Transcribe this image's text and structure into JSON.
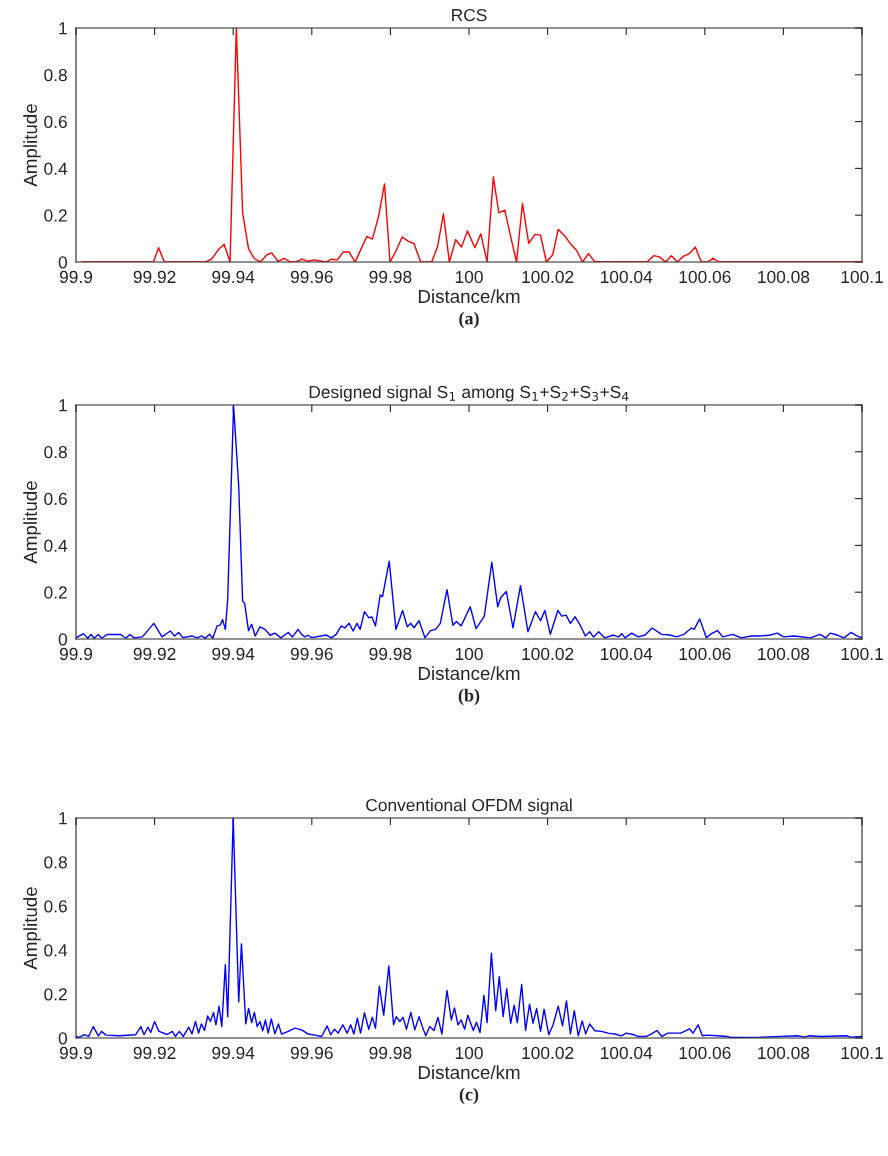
{
  "chart_data": [
    {
      "type": "line",
      "title": "RCS",
      "xlabel": "Distance/km",
      "ylabel": "Amplitude",
      "annotations": [
        "(a)"
      ],
      "xlim": [
        99.9,
        100.1
      ],
      "xticks": [
        99.9,
        99.92,
        99.94,
        99.96,
        99.98,
        100,
        100.02,
        100.04,
        100.06,
        100.08,
        100.1
      ],
      "ylim": [
        0,
        1
      ],
      "yticks": [
        0,
        0.2,
        0.4,
        0.6,
        0.8,
        1
      ],
      "series": [
        {
          "color": "#ff0000",
          "x": [
            99.9015,
            99.9197,
            99.921,
            99.9225,
            99.933,
            99.9345,
            99.9363,
            99.9377,
            99.9392,
            99.9408,
            99.9424,
            99.9439,
            99.9453,
            99.9469,
            99.9486,
            99.9498,
            99.9514,
            99.953,
            99.9545,
            99.956,
            99.9575,
            99.959,
            99.9606,
            99.9636,
            99.965,
            99.9665,
            99.968,
            99.9695,
            99.971,
            99.9725,
            99.974,
            99.9754,
            99.977,
            99.9785,
            99.9799,
            99.9814,
            99.983,
            99.9846,
            99.986,
            99.9877,
            99.9905,
            99.992,
            99.9935,
            99.995,
            99.9966,
            99.9981,
            99.9996,
            100.0015,
            100.003,
            100.0046,
            100.0062,
            100.0076,
            100.0091,
            100.0107,
            100.0121,
            100.0136,
            100.0152,
            100.0168,
            100.0182,
            100.0197,
            100.0213,
            100.0227,
            100.0243,
            100.0259,
            100.0274,
            100.0289,
            100.0304,
            100.0319,
            100.0334,
            100.0453,
            100.047,
            100.0485,
            100.05,
            100.0515,
            100.053,
            100.0545,
            100.0561,
            100.0576,
            100.0591,
            100.0607,
            100.0621,
            100.0636,
            100.1
          ],
          "values": [
            0,
            0,
            0.061,
            0,
            0,
            0.012,
            0.054,
            0.076,
            0,
            1.0,
            0.21,
            0.057,
            0.016,
            0,
            0.031,
            0.039,
            0.003,
            0.016,
            0,
            0,
            0.012,
            0.003,
            0.009,
            0,
            0.012,
            0.009,
            0.043,
            0.043,
            0,
            0.054,
            0.109,
            0.098,
            0.195,
            0.334,
            0,
            0.046,
            0.107,
            0.088,
            0.079,
            0,
            0,
            0.066,
            0.206,
            0,
            0.095,
            0.064,
            0.133,
            0.061,
            0.121,
            0,
            0.364,
            0.21,
            0.222,
            0.101,
            0,
            0.25,
            0.08,
            0.118,
            0.115,
            0,
            0.031,
            0.139,
            0.113,
            0.076,
            0.049,
            0,
            0.036,
            0.003,
            0,
            0,
            0.027,
            0.022,
            0,
            0.027,
            0,
            0.024,
            0.036,
            0.064,
            0,
            0,
            0.016,
            0,
            0
          ]
        }
      ]
    },
    {
      "type": "line",
      "title": "Designed signal S$_{1}$ among S$_{1}$+S$_{2}$+S$_{3}$+S$_{4}$",
      "xlabel": "Distance/km",
      "ylabel": "Amplitude",
      "annotations": [
        "(b)"
      ],
      "xlim": [
        99.9,
        100.1
      ],
      "xticks": [
        99.9,
        99.92,
        99.94,
        99.96,
        99.98,
        100,
        100.02,
        100.04,
        100.06,
        100.08,
        100.1
      ],
      "ylim": [
        0,
        1
      ],
      "yticks": [
        0,
        0.2,
        0.4,
        0.6,
        0.8,
        1
      ],
      "series": [
        {
          "color": "#0000ff",
          "x": [
            99.9,
            99.9019,
            99.903,
            99.9038,
            99.9046,
            99.9057,
            99.9065,
            99.908,
            99.9114,
            99.9127,
            99.9137,
            99.9148,
            99.9169,
            99.9198,
            99.9219,
            99.924,
            99.9251,
            99.9261,
            99.9272,
            99.9295,
            99.9308,
            99.932,
            99.9329,
            99.934,
            99.9348,
            99.9359,
            99.9367,
            99.9373,
            99.938,
            99.9386,
            99.9401,
            99.9414,
            99.9424,
            99.9429,
            99.9439,
            99.9447,
            99.9456,
            99.9468,
            99.9481,
            99.9494,
            99.9506,
            99.9521,
            99.954,
            99.9551,
            99.9565,
            99.9574,
            99.9582,
            99.959,
            99.96,
            99.9637,
            99.965,
            99.9662,
            99.9675,
            99.9684,
            99.9695,
            99.9705,
            99.9715,
            99.9723,
            99.9734,
            99.9745,
            99.9753,
            99.9762,
            99.9774,
            99.978,
            99.9797,
            99.9814,
            99.9831,
            99.9843,
            99.9852,
            99.986,
            99.9873,
            99.9888,
            99.9902,
            99.9915,
            99.9927,
            99.9944,
            99.9959,
            99.9968,
            99.998,
            100.0003,
            100.0018,
            100.0039,
            100.0058,
            100.0073,
            100.0081,
            100.0095,
            100.0112,
            100.0131,
            100.015,
            100.0169,
            100.0182,
            100.0193,
            100.0207,
            100.0226,
            100.0236,
            100.0247,
            100.0258,
            100.027,
            100.0283,
            100.0296,
            100.0307,
            100.0317,
            100.033,
            100.0345,
            100.0368,
            100.038,
            100.0389,
            100.0397,
            100.0414,
            100.0431,
            100.0448,
            100.0466,
            100.049,
            100.0511,
            100.0528,
            100.0547,
            100.0566,
            100.0573,
            100.0587,
            100.0604,
            100.0617,
            100.0632,
            100.0646,
            100.0671,
            100.0693,
            100.0718,
            100.0739,
            100.0764,
            100.0785,
            100.08,
            100.0827,
            100.0869,
            100.0893,
            100.0908,
            100.0919,
            100.0937,
            100.0954,
            100.0972,
            100.0987,
            100.1
          ],
          "values": [
            0.005,
            0.023,
            0.003,
            0.019,
            0.003,
            0.019,
            0.003,
            0.02,
            0.019,
            0.003,
            0.019,
            0.005,
            0.009,
            0.067,
            0.009,
            0.034,
            0.013,
            0.028,
            0.006,
            0.013,
            0.005,
            0.013,
            0.003,
            0.02,
            0.003,
            0.056,
            0.059,
            0.083,
            0.041,
            0.169,
            0.997,
            0.653,
            0.161,
            0.153,
            0.036,
            0.063,
            0.013,
            0.052,
            0.041,
            0.016,
            0.025,
            0.005,
            0.028,
            0.009,
            0.041,
            0.02,
            0.009,
            0.016,
            0.006,
            0.017,
            0.005,
            0.02,
            0.056,
            0.047,
            0.067,
            0.034,
            0.067,
            0.041,
            0.117,
            0.091,
            0.094,
            0.056,
            0.188,
            0.181,
            0.333,
            0.041,
            0.122,
            0.052,
            0.067,
            0.048,
            0.078,
            0.005,
            0.036,
            0.041,
            0.067,
            0.211,
            0.059,
            0.075,
            0.056,
            0.138,
            0.044,
            0.098,
            0.328,
            0.138,
            0.177,
            0.203,
            0.048,
            0.228,
            0.031,
            0.117,
            0.078,
            0.122,
            0.02,
            0.122,
            0.098,
            0.102,
            0.067,
            0.095,
            0.059,
            0.013,
            0.031,
            0.008,
            0.031,
            0.005,
            0.017,
            0.009,
            0.023,
            0.005,
            0.025,
            0.009,
            0.017,
            0.047,
            0.02,
            0.017,
            0.009,
            0.02,
            0.047,
            0.041,
            0.086,
            0.005,
            0.023,
            0.036,
            0.009,
            0.02,
            0.005,
            0.013,
            0.013,
            0.016,
            0.025,
            0.009,
            0.013,
            0.005,
            0.02,
            0.005,
            0.025,
            0.017,
            0.005,
            0.028,
            0.013,
            0.005
          ]
        }
      ]
    },
    {
      "type": "line",
      "title": "Conventional OFDM signal",
      "xlabel": "Distance/km",
      "ylabel": "Amplitude",
      "annotations": [
        "(c)"
      ],
      "xlim": [
        99.9,
        100.1
      ],
      "xticks": [
        99.9,
        99.92,
        99.94,
        99.96,
        99.98,
        100,
        100.02,
        100.04,
        100.06,
        100.08,
        100.1
      ],
      "ylim": [
        0,
        1
      ],
      "yticks": [
        0,
        0.2,
        0.4,
        0.6,
        0.8,
        1
      ],
      "series": [
        {
          "color": "#0000ff",
          "x": [
            99.9,
            99.9008,
            99.9021,
            99.9032,
            99.9044,
            99.9057,
            99.9065,
            99.9076,
            99.911,
            99.9152,
            99.9165,
            99.9173,
            99.9183,
            99.919,
            99.92,
            99.9211,
            99.9232,
            99.9245,
            99.9253,
            99.9263,
            99.9273,
            99.9287,
            99.9295,
            99.9304,
            99.9312,
            99.9319,
            99.9327,
            99.9335,
            99.9342,
            99.935,
            99.9356,
            99.9364,
            99.9371,
            99.938,
            99.9386,
            99.94,
            99.9414,
            99.9421,
            99.9432,
            99.9439,
            99.9447,
            99.9454,
            99.9461,
            99.9468,
            99.9475,
            99.9482,
            99.9489,
            99.9497,
            99.9506,
            99.9515,
            99.9523,
            99.954,
            99.9557,
            99.9574,
            99.9591,
            99.9608,
            99.9625,
            99.9639,
            99.9648,
            99.9658,
            99.9667,
            99.9679,
            99.969,
            99.9699,
            99.9707,
            99.9716,
            99.9724,
            99.9734,
            99.9745,
            99.9754,
            99.9762,
            99.9772,
            99.9783,
            99.9796,
            99.9808,
            99.9815,
            99.9824,
            99.9832,
            99.9841,
            99.9852,
            99.9862,
            99.9873,
            99.9881,
            99.989,
            99.99,
            99.9911,
            99.9921,
            99.9931,
            99.9944,
            99.9955,
            99.9963,
            99.9972,
            99.998,
            99.9989,
            99.9997,
            100.0011,
            100.0019,
            100.0028,
            100.0038,
            100.0046,
            100.0057,
            100.0068,
            100.0077,
            100.0087,
            100.0096,
            100.0106,
            100.0115,
            100.0123,
            100.0134,
            100.0144,
            100.0154,
            100.0163,
            100.0172,
            100.0182,
            100.0191,
            100.0203,
            100.0214,
            100.0227,
            100.0238,
            100.0248,
            100.0258,
            100.0268,
            100.0278,
            100.0288,
            100.0297,
            100.0307,
            100.032,
            100.0337,
            100.0354,
            100.0371,
            100.0388,
            100.04,
            100.0417,
            100.043,
            100.0451,
            100.0464,
            100.0478,
            100.0491,
            100.0506,
            100.0539,
            100.0561,
            100.057,
            100.0583,
            100.0594,
            100.0606,
            100.0632,
            100.0657,
            100.0666,
            100.0742,
            100.0839,
            100.0852,
            100.0865,
            100.0894,
            100.0962,
            100.097,
            100.1
          ],
          "values": [
            0.007,
            0.003,
            0.015,
            0.007,
            0.052,
            0.01,
            0.03,
            0.013,
            0.01,
            0.015,
            0.052,
            0.015,
            0.049,
            0.025,
            0.075,
            0.03,
            0.016,
            0.03,
            0.007,
            0.03,
            0.007,
            0.049,
            0.018,
            0.075,
            0.022,
            0.064,
            0.034,
            0.1,
            0.075,
            0.116,
            0.06,
            0.145,
            0.052,
            0.333,
            0.097,
            1.0,
            0.164,
            0.428,
            0.064,
            0.134,
            0.07,
            0.116,
            0.052,
            0.075,
            0.033,
            0.082,
            0.022,
            0.087,
            0.019,
            0.064,
            0.018,
            0.03,
            0.045,
            0.037,
            0.018,
            0.013,
            0.007,
            0.055,
            0.015,
            0.04,
            0.022,
            0.06,
            0.022,
            0.06,
            0.018,
            0.09,
            0.022,
            0.115,
            0.04,
            0.094,
            0.045,
            0.236,
            0.104,
            0.328,
            0.06,
            0.097,
            0.075,
            0.094,
            0.04,
            0.116,
            0.037,
            0.097,
            0.052,
            0.01,
            0.052,
            0.034,
            0.094,
            0.018,
            0.216,
            0.082,
            0.137,
            0.06,
            0.082,
            0.04,
            0.104,
            0.034,
            0.072,
            0.025,
            0.194,
            0.07,
            0.385,
            0.124,
            0.279,
            0.097,
            0.224,
            0.067,
            0.149,
            0.07,
            0.243,
            0.034,
            0.154,
            0.067,
            0.134,
            0.03,
            0.131,
            0.015,
            0.06,
            0.145,
            0.055,
            0.169,
            0.019,
            0.124,
            0.01,
            0.078,
            0.019,
            0.064,
            0.033,
            0.03,
            0.022,
            0.018,
            0.01,
            0.022,
            0.016,
            0.007,
            0.007,
            0.018,
            0.034,
            0.007,
            0.022,
            0.022,
            0.042,
            0.022,
            0.06,
            0.01,
            0.013,
            0.01,
            0.007,
            0.003,
            0.004,
            0.01,
            0.004,
            0.01,
            0.007,
            0.01,
            0.004,
            0.007
          ]
        }
      ]
    }
  ]
}
